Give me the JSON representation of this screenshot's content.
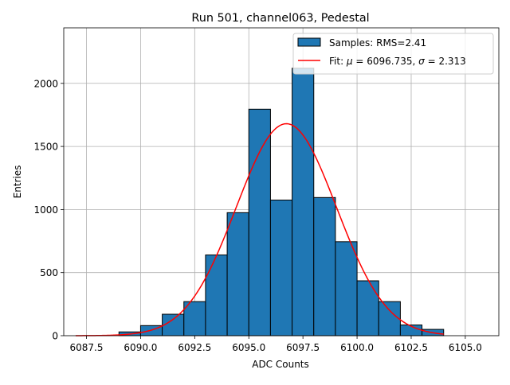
{
  "chart_data": {
    "type": "bar",
    "title": "Run 501, channel063, Pedestal",
    "xlabel": "ADC Counts",
    "ylabel": "Entries",
    "xlim": [
      6086.45,
      6106.55
    ],
    "ylim": [
      0,
      2440
    ],
    "grid": true,
    "legend_position": "top-right",
    "xticks": [
      6087.5,
      6090.0,
      6092.5,
      6095.0,
      6097.5,
      6100.0,
      6102.5,
      6105.0
    ],
    "xtick_labels": [
      "6087.5",
      "6090.0",
      "6092.5",
      "6095.0",
      "6097.5",
      "6100.0",
      "6102.5",
      "6105.0"
    ],
    "yticks": [
      0,
      500,
      1000,
      1500,
      2000
    ],
    "ytick_labels": [
      "0",
      "500",
      "1000",
      "1500",
      "2000"
    ],
    "histogram": {
      "name": "Samples: RMS=2.41",
      "color": "#1f77b4",
      "edge_color": "#000000",
      "bin_edges": [
        6089,
        6090,
        6091,
        6092,
        6093,
        6094,
        6095,
        6096,
        6097,
        6098,
        6099,
        6100,
        6101,
        6102,
        6103,
        6104
      ],
      "counts": [
        30,
        80,
        170,
        270,
        640,
        975,
        1795,
        1075,
        2120,
        1095,
        745,
        435,
        270,
        85,
        50
      ]
    },
    "fit": {
      "name": "Fit: μ = 6096.735, σ = 2.313",
      "color": "#ff0000",
      "mu": 6096.735,
      "sigma": 2.313,
      "amplitude": 1680,
      "x_range": [
        6087,
        6104
      ]
    },
    "legend": {
      "entries": [
        {
          "label_prefix": "Samples: RMS=2.41",
          "kind": "patch"
        },
        {
          "label_prefix": "Fit: ",
          "mu_symbol": "μ",
          "mu_text": " = 6096.735, ",
          "sigma_symbol": "σ",
          "sigma_text": " = 2.313",
          "kind": "line"
        }
      ]
    }
  }
}
